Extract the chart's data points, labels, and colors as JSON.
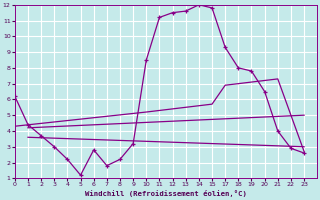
{
  "xlabel": "Windchill (Refroidissement éolien,°C)",
  "background_color": "#c5eaea",
  "grid_color": "#ffffff",
  "line_color": "#880088",
  "xlim": [
    0,
    23
  ],
  "ylim": [
    1,
    12
  ],
  "xtick_labels": [
    "0",
    "1",
    "2",
    "3",
    "4",
    "5",
    "6",
    "7",
    "8",
    "9",
    "10",
    "11",
    "12",
    "13",
    "14",
    "15",
    "17",
    "18",
    "19",
    "20",
    "21",
    "22",
    "23"
  ],
  "xtick_positions": [
    0,
    1,
    2,
    3,
    4,
    5,
    6,
    7,
    8,
    9,
    10,
    11,
    12,
    13,
    14,
    15,
    16,
    17,
    18,
    19,
    20,
    21,
    22
  ],
  "yticks": [
    1,
    2,
    3,
    4,
    5,
    6,
    7,
    8,
    9,
    10,
    11,
    12
  ],
  "line1_x": [
    0,
    1,
    2,
    3,
    4,
    5,
    6,
    7,
    8,
    9,
    10,
    11,
    12,
    13,
    14,
    15,
    16,
    17,
    18,
    19,
    20,
    21,
    22
  ],
  "line1_y": [
    6.2,
    4.4,
    3.7,
    3.0,
    2.2,
    1.2,
    2.8,
    1.8,
    2.2,
    3.2,
    8.5,
    11.2,
    11.5,
    11.6,
    12.0,
    11.8,
    9.3,
    8.0,
    7.8,
    6.5,
    4.0,
    2.9,
    2.6
  ],
  "line2_x": [
    0,
    10,
    15,
    16,
    20,
    22
  ],
  "line2_y": [
    4.3,
    5.2,
    5.7,
    6.9,
    7.3,
    2.7
  ],
  "line3_x": [
    1,
    22
  ],
  "line3_y": [
    4.2,
    5.0
  ],
  "line4_x": [
    1,
    22
  ],
  "line4_y": [
    3.6,
    3.0
  ]
}
